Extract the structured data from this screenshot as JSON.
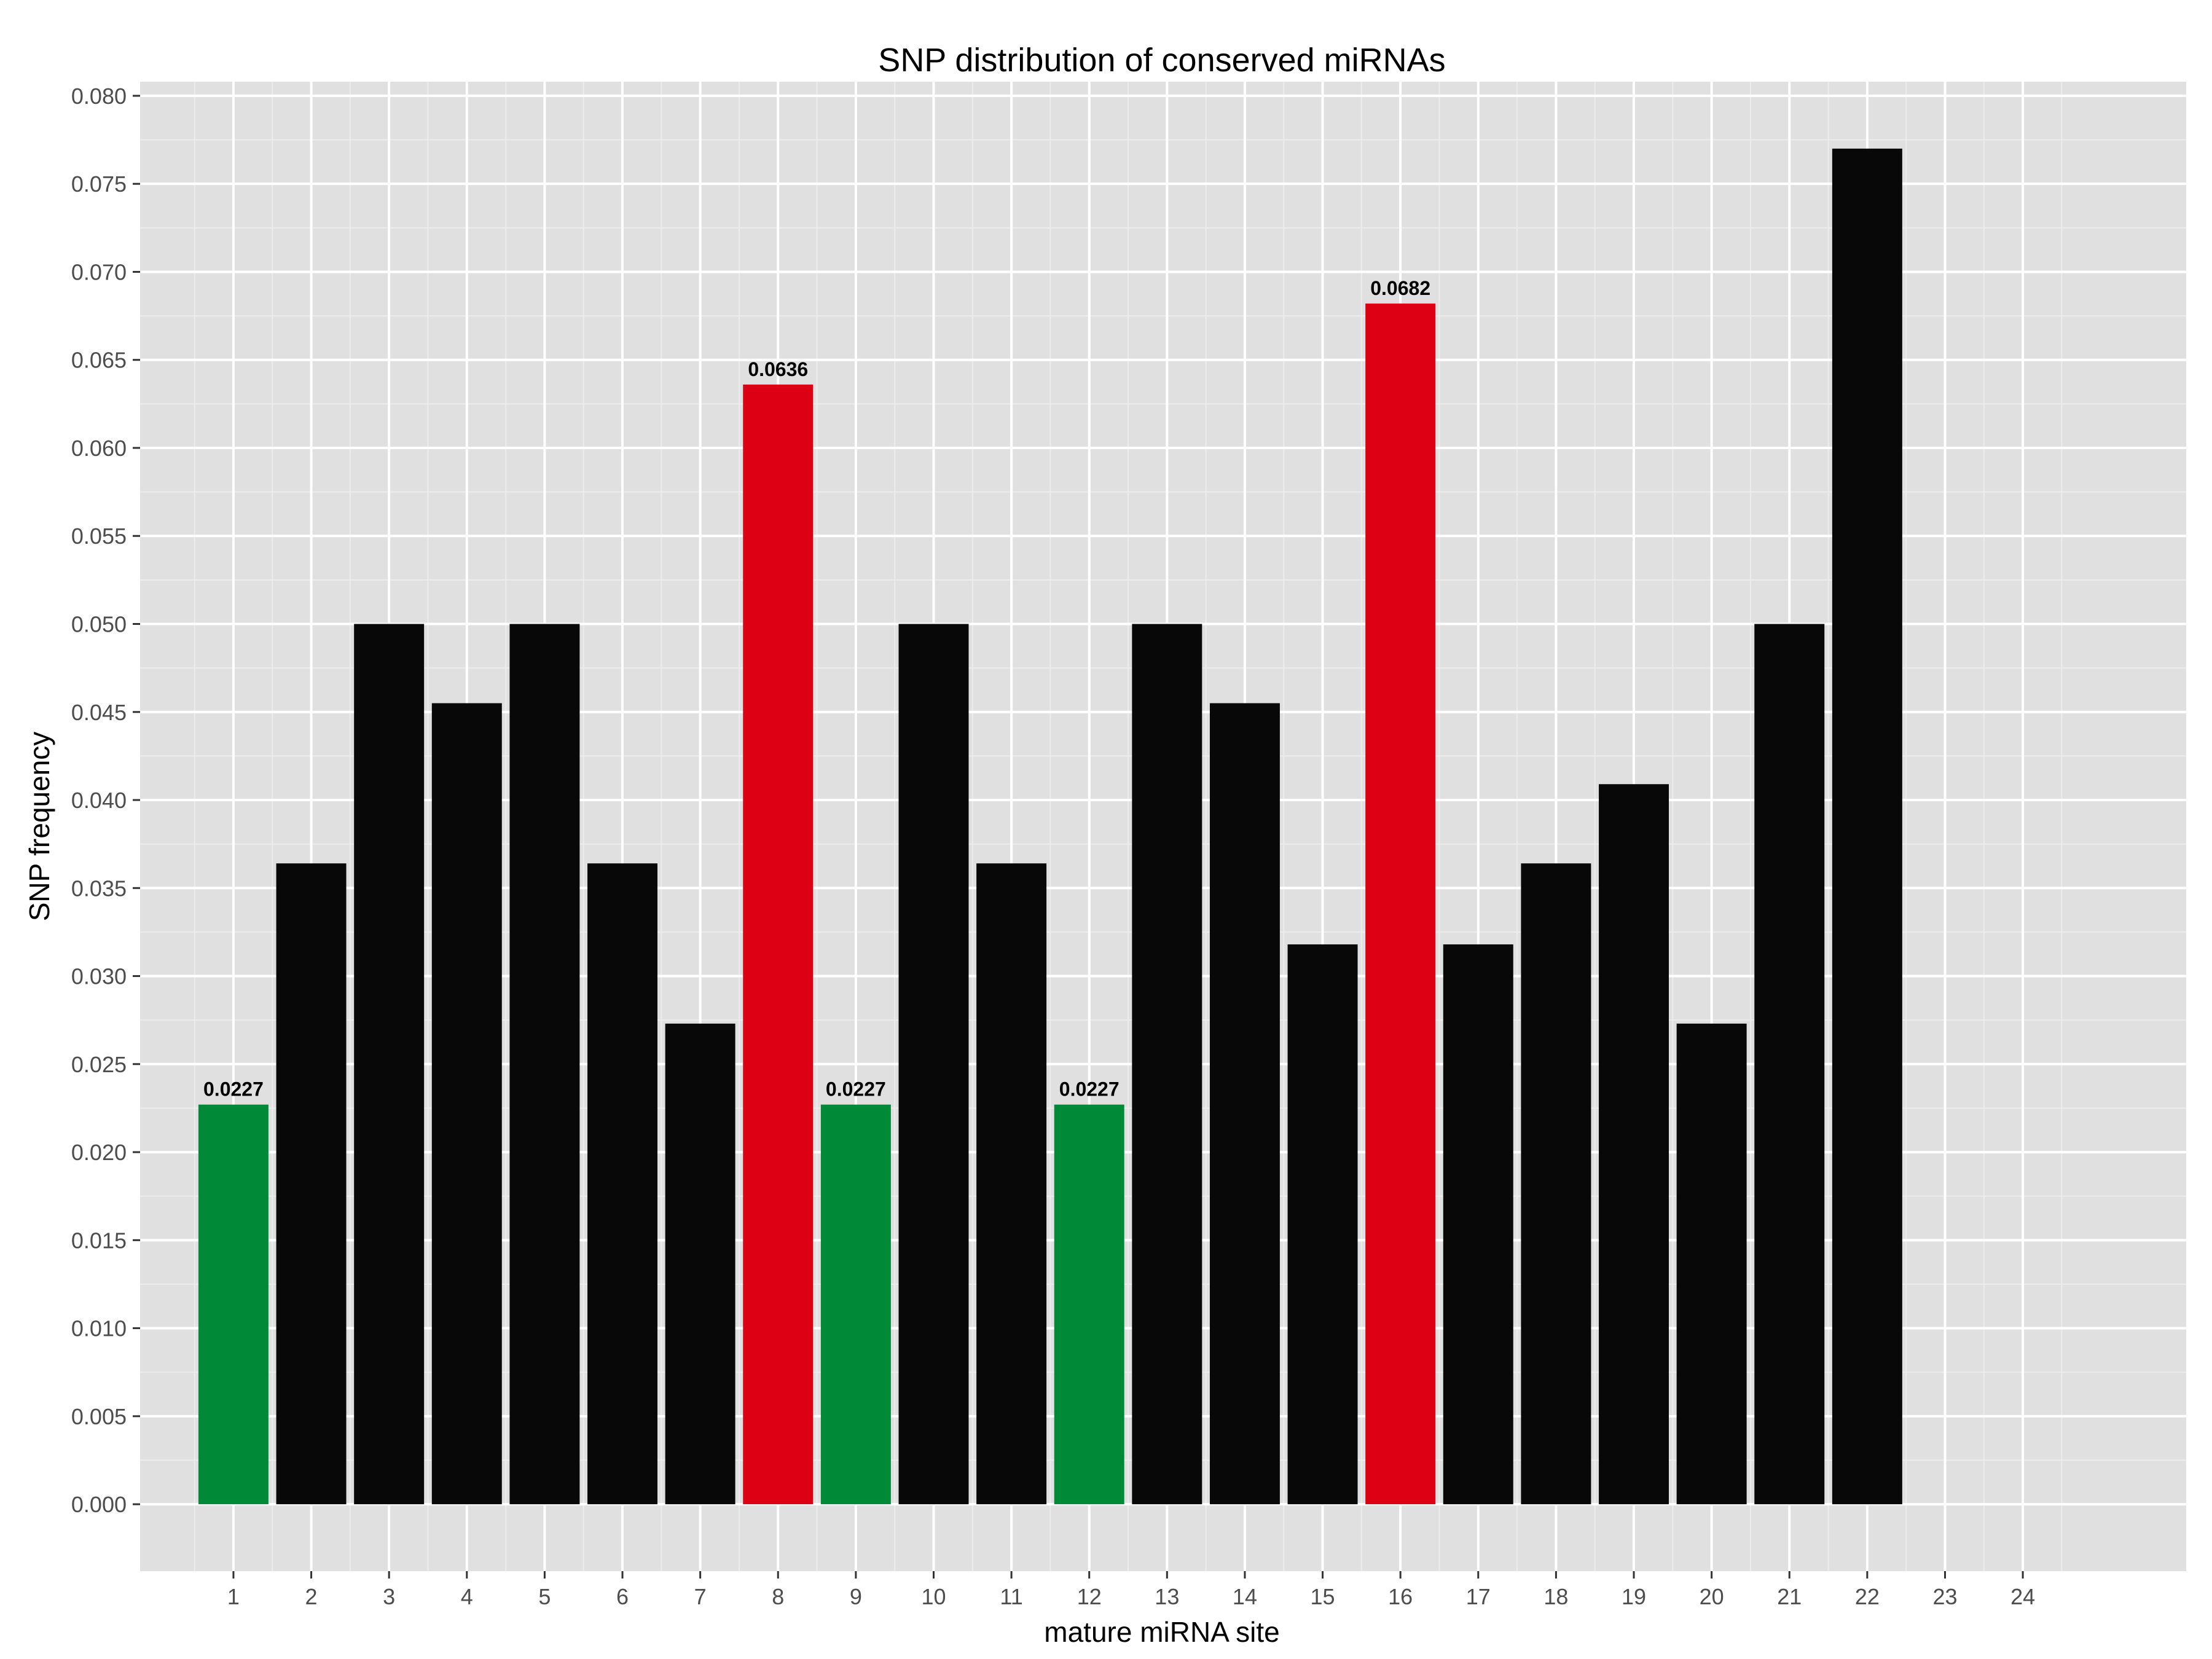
{
  "chart_data": {
    "type": "bar",
    "title": "SNP distribution of conserved miRNAs",
    "xlabel": "mature miRNA site",
    "ylabel": "SNP frequency",
    "ylim": [
      -0.0038,
      0.0808
    ],
    "xlim": [
      -0.2,
      26.1
    ],
    "x_ticks": [
      "1",
      "2",
      "3",
      "4",
      "5",
      "6",
      "7",
      "8",
      "9",
      "10",
      "11",
      "12",
      "13",
      "14",
      "15",
      "16",
      "17",
      "18",
      "19",
      "20",
      "21",
      "22",
      "23",
      "24"
    ],
    "y_ticks": [
      "0.000",
      "0.005",
      "0.010",
      "0.015",
      "0.020",
      "0.025",
      "0.030",
      "0.035",
      "0.040",
      "0.045",
      "0.050",
      "0.055",
      "0.060",
      "0.065",
      "0.070",
      "0.075",
      "0.080"
    ],
    "grid": true,
    "legend": "none",
    "colors": {
      "panel_bg": "#e0e0e0",
      "grid_major": "#ffffff",
      "grid_minor": "#ececec",
      "default_bar": "#080808",
      "green": "#008a37",
      "red": "#dd0015"
    },
    "bars": [
      {
        "x": 1,
        "value": 0.0227,
        "color": "green",
        "label": "0.0227"
      },
      {
        "x": 2,
        "value": 0.0364,
        "color": "default"
      },
      {
        "x": 3,
        "value": 0.05,
        "color": "default"
      },
      {
        "x": 4,
        "value": 0.0455,
        "color": "default"
      },
      {
        "x": 5,
        "value": 0.05,
        "color": "default"
      },
      {
        "x": 6,
        "value": 0.0364,
        "color": "default"
      },
      {
        "x": 7,
        "value": 0.0273,
        "color": "default"
      },
      {
        "x": 8,
        "value": 0.0636,
        "color": "red",
        "label": "0.0636"
      },
      {
        "x": 9,
        "value": 0.0227,
        "color": "green",
        "label": "0.0227"
      },
      {
        "x": 10,
        "value": 0.05,
        "color": "default"
      },
      {
        "x": 11,
        "value": 0.0364,
        "color": "default"
      },
      {
        "x": 12,
        "value": 0.0227,
        "color": "green",
        "label": "0.0227"
      },
      {
        "x": 13,
        "value": 0.05,
        "color": "default"
      },
      {
        "x": 14,
        "value": 0.0455,
        "color": "default"
      },
      {
        "x": 15,
        "value": 0.0318,
        "color": "default"
      },
      {
        "x": 16,
        "value": 0.0682,
        "color": "red",
        "label": "0.0682"
      },
      {
        "x": 17,
        "value": 0.0318,
        "color": "default"
      },
      {
        "x": 18,
        "value": 0.0364,
        "color": "default"
      },
      {
        "x": 19,
        "value": 0.0409,
        "color": "default"
      },
      {
        "x": 20,
        "value": 0.0273,
        "color": "default"
      },
      {
        "x": 21,
        "value": 0.05,
        "color": "default"
      },
      {
        "x": 22,
        "value": 0.077,
        "color": "default"
      }
    ]
  }
}
